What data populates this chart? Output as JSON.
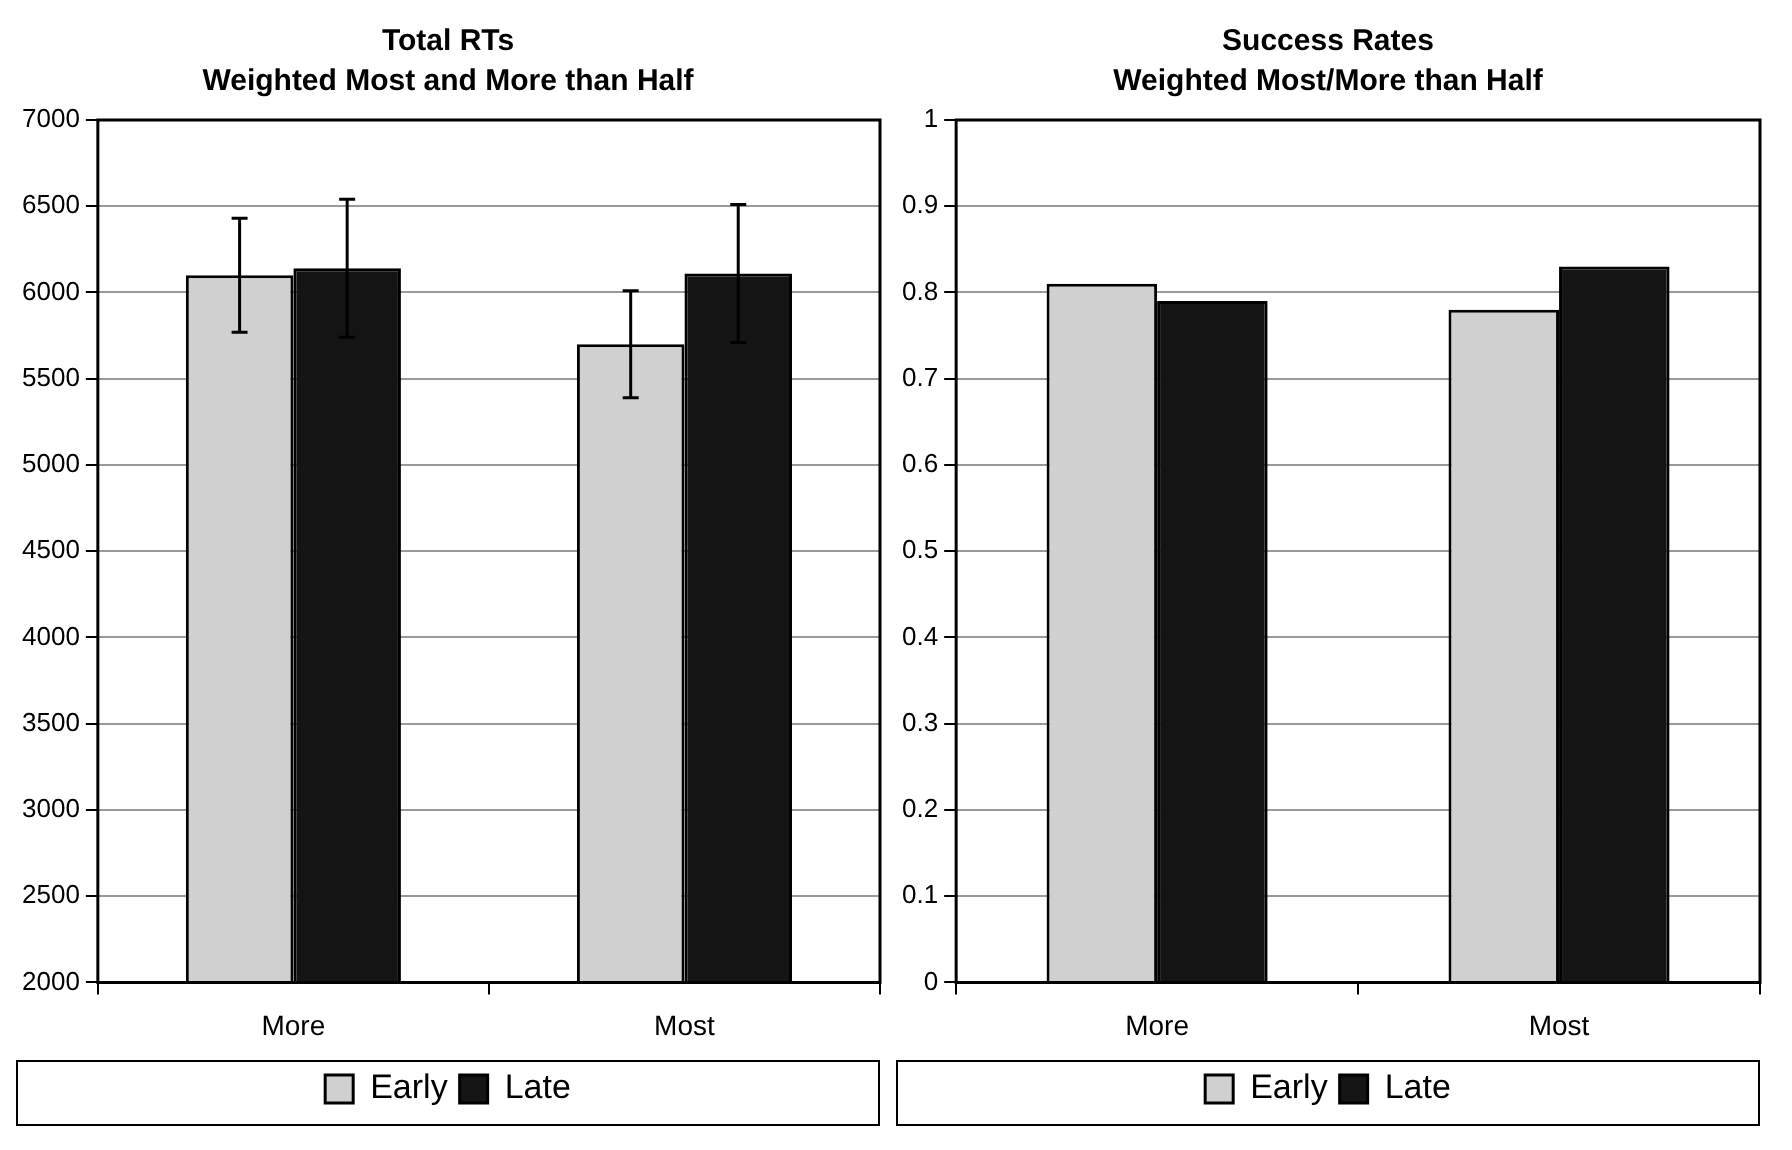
{
  "chart_data": [
    {
      "type": "bar",
      "title": "Total RTs",
      "subtitle": "Weighted Most and More than Half",
      "categories": [
        "More",
        "Most"
      ],
      "series": [
        {
          "name": "Early",
          "color": "#d0d0d0",
          "values": [
            6100,
            5700
          ],
          "errors": [
            330,
            310
          ]
        },
        {
          "name": "Late",
          "color": "#141414",
          "values": [
            6140,
            6110
          ],
          "errors": [
            400,
            400
          ]
        }
      ],
      "ylim": [
        2000,
        7000
      ],
      "yticks": [
        2000,
        2500,
        3000,
        3500,
        4000,
        4500,
        5000,
        5500,
        6000,
        6500,
        7000
      ],
      "grid": "y",
      "legend": "bottom"
    },
    {
      "type": "bar",
      "title": "Success Rates",
      "subtitle": "Weighted Most/More than Half",
      "categories": [
        "More",
        "Most"
      ],
      "series": [
        {
          "name": "Early",
          "color": "#d0d0d0",
          "values": [
            0.81,
            0.78
          ]
        },
        {
          "name": "Late",
          "color": "#141414",
          "values": [
            0.79,
            0.83
          ]
        }
      ],
      "ylim": [
        0,
        1
      ],
      "yticks": [
        0,
        0.1,
        0.2,
        0.3,
        0.4,
        0.5,
        0.6,
        0.7,
        0.8,
        0.9,
        1
      ],
      "grid": "y",
      "legend": "bottom"
    }
  ]
}
